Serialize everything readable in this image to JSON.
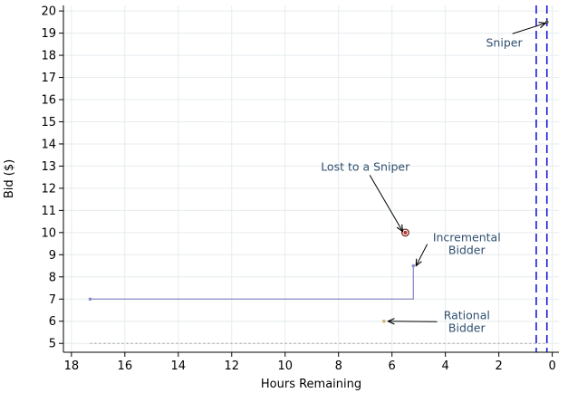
{
  "chart_data": {
    "type": "line",
    "title": "",
    "xlabel": "Hours Remaining",
    "ylabel": "Bid ($)",
    "xlim": [
      18.3,
      -0.25
    ],
    "ylim": [
      4.6,
      20.25
    ],
    "x_reversed": true,
    "x_ticks": [
      18,
      16,
      14,
      12,
      10,
      8,
      6,
      4,
      2,
      0
    ],
    "y_ticks": [
      5,
      6,
      7,
      8,
      9,
      10,
      11,
      12,
      13,
      14,
      15,
      16,
      17,
      18,
      19,
      20
    ],
    "grid": true,
    "series": [
      {
        "kind": "step",
        "color": "#8c8cc8",
        "points": [
          {
            "x": 17.3,
            "y": 7
          },
          {
            "x": 5.2,
            "y": 7
          },
          {
            "x": 5.2,
            "y": 8.5
          }
        ]
      },
      {
        "kind": "marker",
        "color": "#c0302a",
        "ring": true,
        "points": [
          {
            "x": 5.5,
            "y": 10
          }
        ]
      },
      {
        "kind": "marker",
        "color": "#c8b46e",
        "points": [
          {
            "x": 6.3,
            "y": 6
          }
        ]
      },
      {
        "kind": "marker",
        "color": "#555555",
        "points": [
          {
            "x": 0.2,
            "y": 19.5
          }
        ]
      }
    ],
    "reference_lines": [
      {
        "orientation": "vertical",
        "value": 0.6,
        "style": "dashed",
        "color": "#1a1ad6"
      },
      {
        "orientation": "vertical",
        "value": 0.2,
        "style": "dashed",
        "color": "#1a1ad6"
      },
      {
        "orientation": "horizontal",
        "value": 5,
        "style": "dotted",
        "color": "#999999"
      }
    ],
    "annotations": [
      {
        "lines": [
          "Sniper"
        ],
        "x": 1.8,
        "y": 18.4,
        "arrow_to": {
          "x": 0.25,
          "y": 19.45
        }
      },
      {
        "lines": [
          "Lost to a Sniper"
        ],
        "x": 7.0,
        "y": 12.8,
        "arrow_to": {
          "x": 5.6,
          "y": 10.05
        }
      },
      {
        "lines": [
          "Incremental",
          "Bidder"
        ],
        "x": 3.2,
        "y": 9.6,
        "arrow_to": {
          "x": 5.1,
          "y": 8.5
        }
      },
      {
        "lines": [
          "Rational",
          "Bidder"
        ],
        "x": 3.2,
        "y": 6.1,
        "arrow_to": {
          "x": 6.15,
          "y": 6.0
        }
      }
    ]
  }
}
